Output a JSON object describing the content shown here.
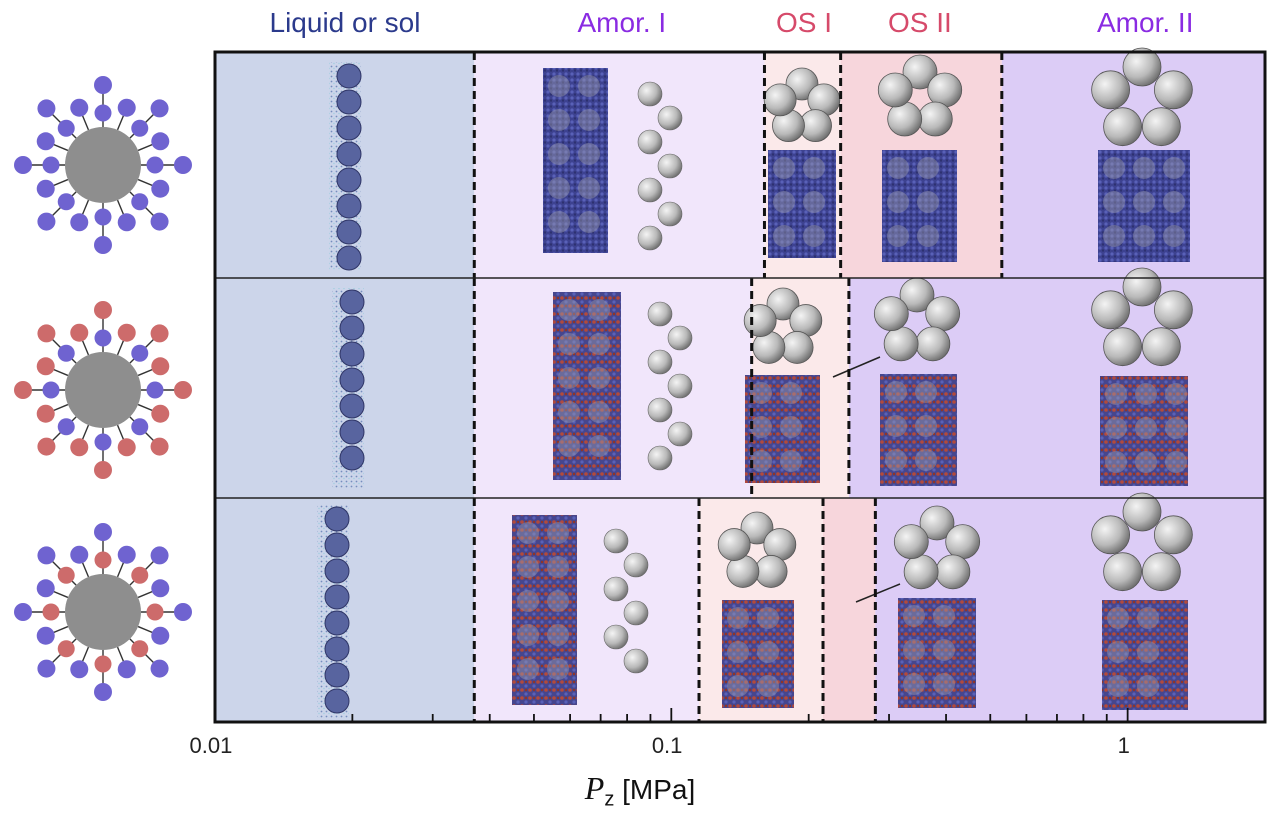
{
  "phases": [
    {
      "label": "Liquid or sol",
      "color": "#2b3a8c"
    },
    {
      "label": "Amor. I",
      "color": "#8a2be2"
    },
    {
      "label": "OS I",
      "color": "#d64a6a"
    },
    {
      "label": "OS II",
      "color": "#d64a6a"
    },
    {
      "label": "Amor. II",
      "color": "#8a2be2"
    }
  ],
  "x_axis": {
    "scale": "log",
    "range": [
      0.01,
      2
    ],
    "major_ticks": [
      "0.01",
      "0.1",
      "1"
    ],
    "variable": "P",
    "subscript": "z",
    "unit": "[MPa]"
  },
  "rows": [
    {
      "coating": "all-blue",
      "regions": [
        {
          "phase": "Liquid or sol",
          "from": 0.01,
          "to": 0.037
        },
        {
          "phase": "Amor. I",
          "from": 0.037,
          "to": 0.16
        },
        {
          "phase": "OS I",
          "from": 0.16,
          "to": 0.235
        },
        {
          "phase": "OS II",
          "from": 0.235,
          "to": 0.53
        },
        {
          "phase": "Amor. II",
          "from": 0.53,
          "to": 2
        }
      ]
    },
    {
      "coating": "red-outer-blue-inner",
      "regions": [
        {
          "phase": "Liquid or sol",
          "from": 0.01,
          "to": 0.037
        },
        {
          "phase": "Amor. I",
          "from": 0.037,
          "to": 0.15
        },
        {
          "phase": "OS I",
          "from": 0.15,
          "to": 0.245
        },
        {
          "phase": "Amor. II",
          "from": 0.245,
          "to": 2
        }
      ]
    },
    {
      "coating": "blue-outer-red-inner",
      "regions": [
        {
          "phase": "Liquid or sol",
          "from": 0.01,
          "to": 0.037
        },
        {
          "phase": "Amor. I",
          "from": 0.037,
          "to": 0.115
        },
        {
          "phase": "OS I",
          "from": 0.115,
          "to": 0.215
        },
        {
          "phase": "OS II",
          "from": 0.215,
          "to": 0.28
        },
        {
          "phase": "Amor. II",
          "from": 0.28,
          "to": 2
        }
      ]
    }
  ]
}
